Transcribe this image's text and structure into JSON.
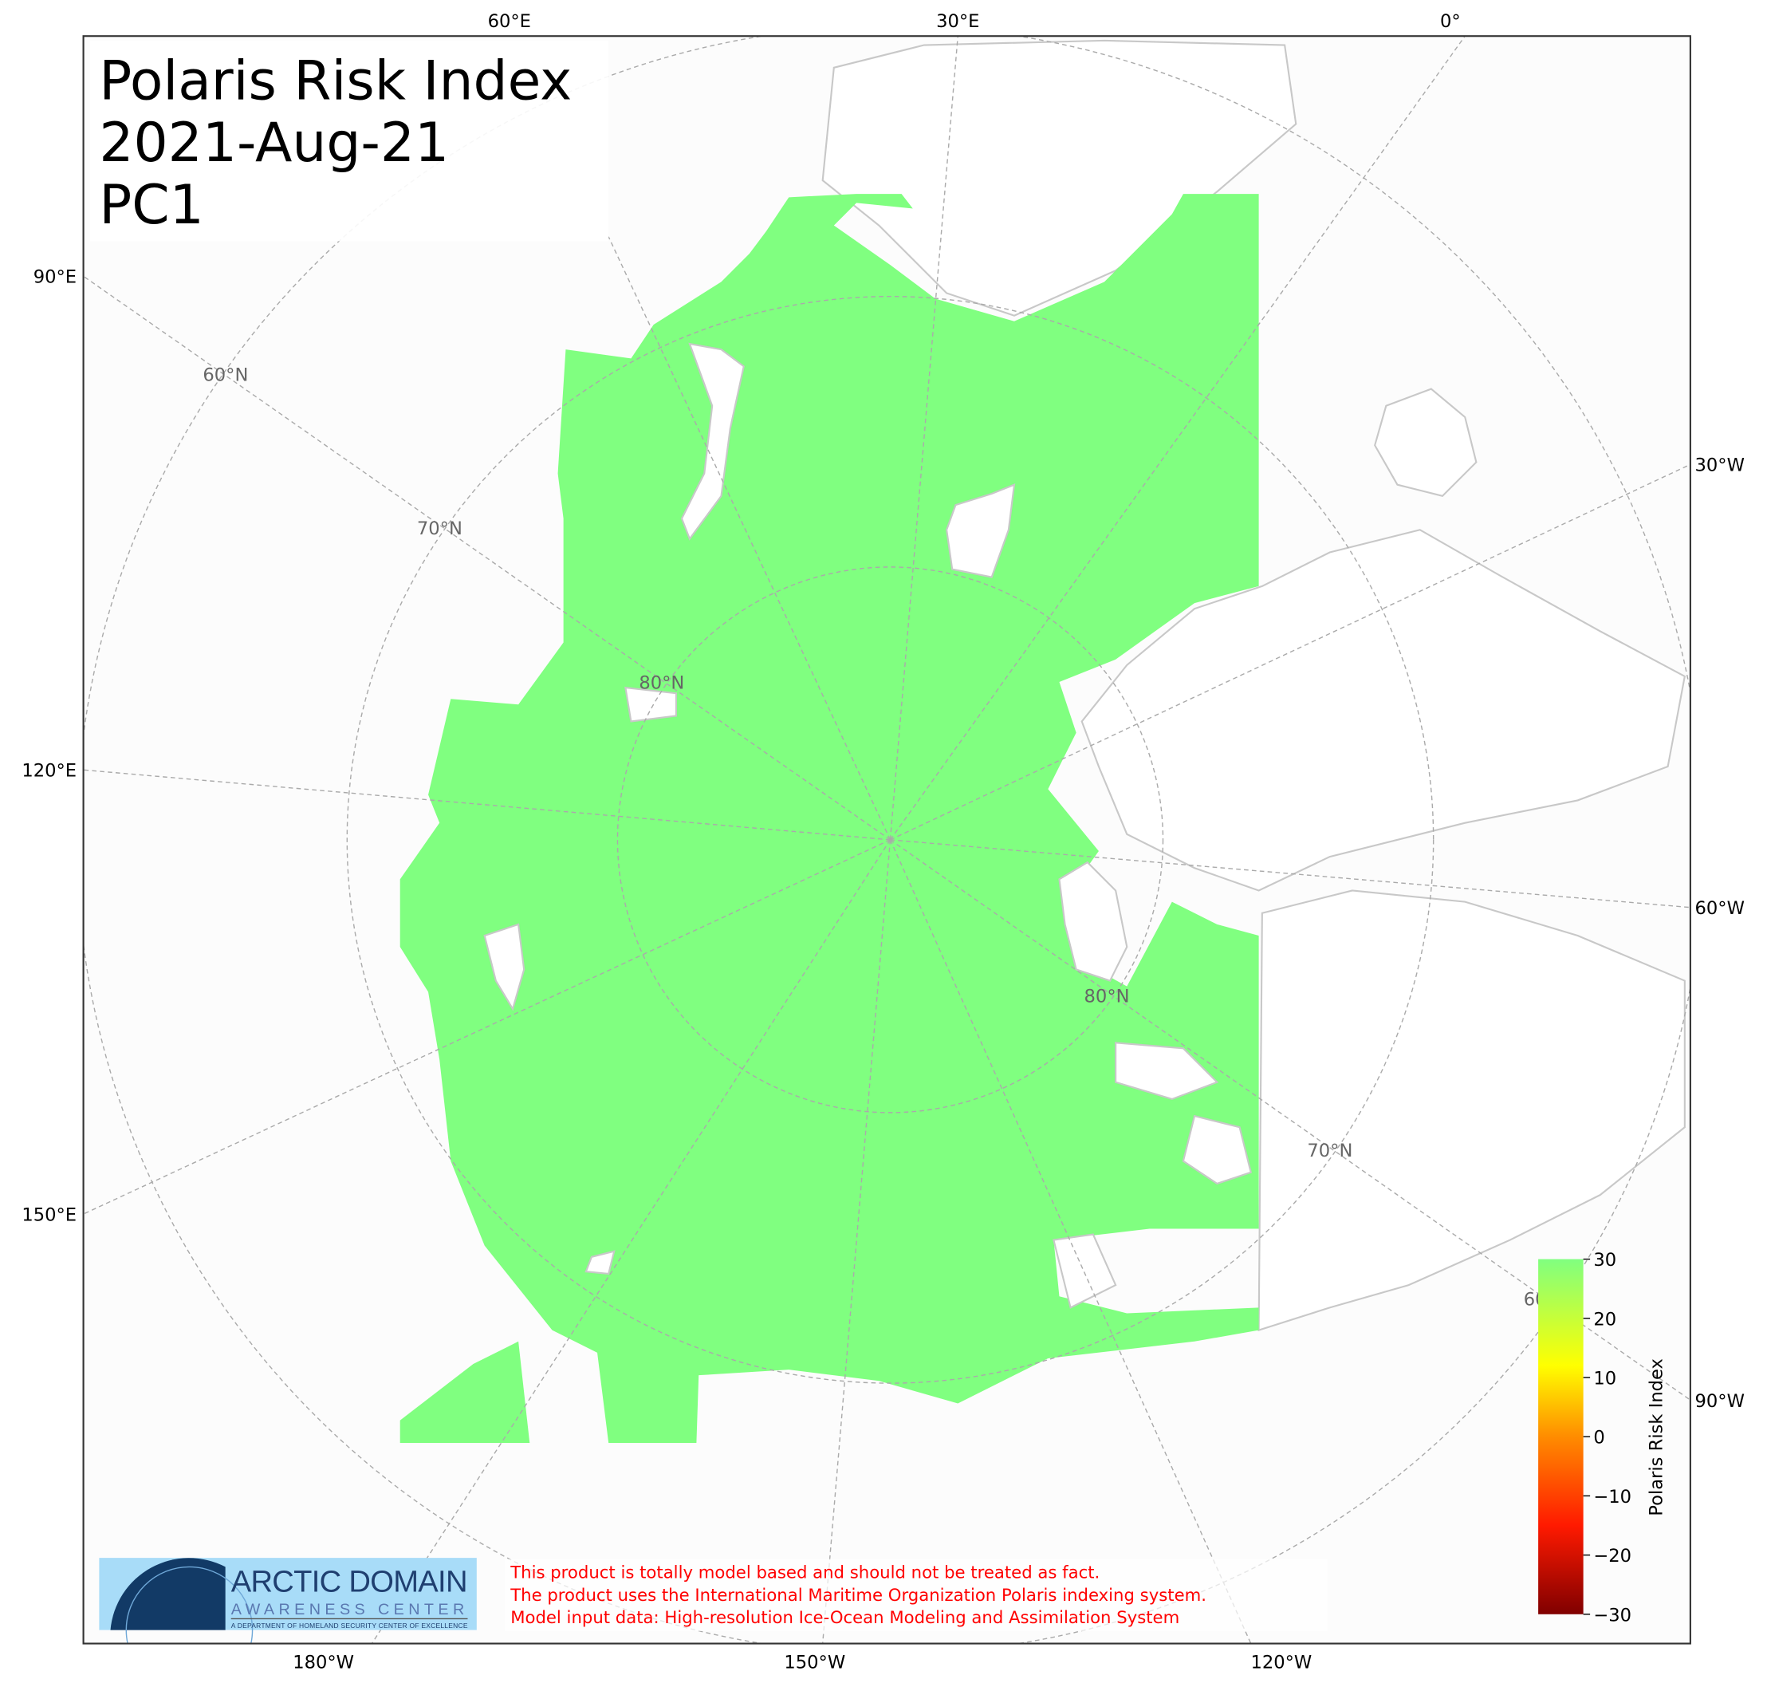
{
  "title": {
    "line1": "Polaris Risk Index",
    "line2": "2021-Aug-21",
    "line3": "PC1"
  },
  "colors": {
    "risk_fill": "#80ff80",
    "background": "#fcfcfc",
    "land_outline": "#c8c8c8",
    "note_text": "#ff0000"
  },
  "longitude_labels": {
    "top": [
      "60°E",
      "30°E",
      "0°"
    ],
    "left": [
      "90°E",
      "120°E",
      "150°E"
    ],
    "right": [
      "30°W",
      "60°W",
      "90°W"
    ],
    "bottom": [
      "180°W",
      "150°W",
      "120°W"
    ]
  },
  "latitude_labels": [
    "60°N",
    "70°N",
    "80°N",
    "80°N",
    "70°N",
    "60"
  ],
  "colorbar": {
    "label": "Polaris Risk Index",
    "range": [
      -30,
      30
    ],
    "ticks": [
      "30",
      "20",
      "10",
      "0",
      "−10",
      "−20",
      "−30"
    ],
    "colormap": [
      "#800000",
      "#ff1a00",
      "#ff8c00",
      "#ffff00",
      "#80ff80"
    ]
  },
  "logo": {
    "line1": "ARCTIC DOMAIN",
    "line2": "AWARENESS CENTER",
    "line3": "A DEPARTMENT OF HOMELAND SECURITY CENTER OF EXCELLENCE"
  },
  "disclaimer": [
    "This product is totally model based and should not be treated as fact.",
    "The product uses the International Maritime Organization Polaris indexing system.",
    "Model input data: High-resolution Ice-Ocean Modeling and Assimilation System"
  ]
}
